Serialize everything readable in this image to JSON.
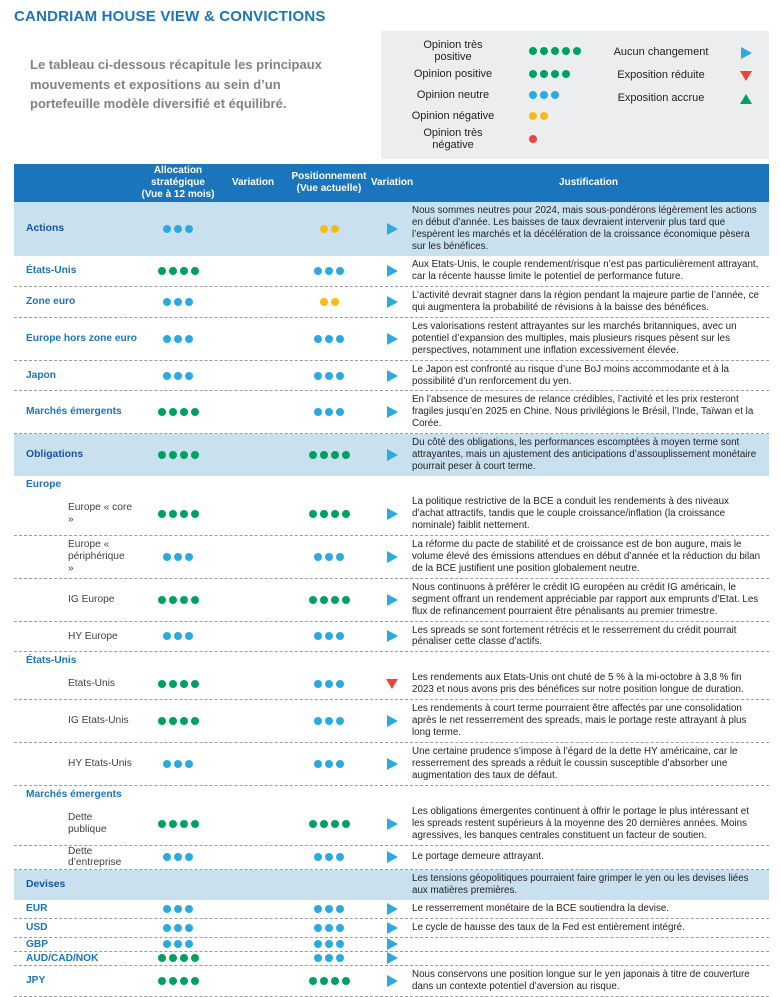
{
  "title": "CANDRIAM HOUSE VIEW & CONVICTIONS",
  "intro": "Le tableau ci-dessous récapitule les principaux mouvements et expositions au sein d’un portefeuille modèle diversifié et équilibré.",
  "colors": {
    "green": "#00A160",
    "blue": "#29ABE2",
    "yellow": "#FDB913",
    "red": "#E9453C",
    "brand_blue": "#1B75BC",
    "navy": "#17549F",
    "highlight": "#C9E1EE",
    "legend_bg": "#ECEDEE"
  },
  "legend": {
    "opinions": [
      {
        "label": "Opinion très\npositive",
        "dots": {
          "count": 5,
          "color": "green"
        }
      },
      {
        "label": "Opinion positive",
        "dots": {
          "count": 4,
          "color": "green"
        }
      },
      {
        "label": "Opinion neutre",
        "dots": {
          "count": 3,
          "color": "blue"
        }
      },
      {
        "label": "Opinion négative",
        "dots": {
          "count": 2,
          "color": "yellow"
        }
      },
      {
        "label": "Opinion très\nnégative",
        "dots": {
          "count": 1,
          "color": "red"
        }
      }
    ],
    "variations": [
      {
        "label": "Aucun changement",
        "arrow": {
          "dir": "right",
          "color": "blue"
        }
      },
      {
        "label": "Exposition réduite",
        "arrow": {
          "dir": "down",
          "color": "red"
        }
      },
      {
        "label": "Exposition accrue",
        "arrow": {
          "dir": "up",
          "color": "green"
        }
      }
    ]
  },
  "table": {
    "headers": {
      "label": "",
      "allocation": "Allocation\nstratégique\n(Vue à 12 mois)",
      "variation1": "Variation",
      "positioning": "Positionnement\n(Vue actuelle)",
      "variation2": "Variation",
      "justification": "Justification"
    },
    "rows": [
      {
        "label": "Actions",
        "type": "highlight",
        "alloc": {
          "count": 3,
          "color": "blue"
        },
        "pos": {
          "count": 2,
          "color": "yellow"
        },
        "var2": {
          "dir": "right",
          "color": "blue"
        },
        "just": "Nous sommes neutres pour 2024, mais sous-pondérons légèrement les actions en début d’année. Les baisses de taux devraient intervenir plus tard que l’espèrent les marchés et la décélération de la croissance économique pèsera sur les bénéfices."
      },
      {
        "label": "États-Unis",
        "type": "main",
        "alloc": {
          "count": 4,
          "color": "green"
        },
        "pos": {
          "count": 3,
          "color": "blue"
        },
        "var2": {
          "dir": "right",
          "color": "blue"
        },
        "just": "Aux Etats-Unis, le couple rendement/risque n’est pas particulièrement attrayant, car la récente hausse limite le potentiel de performance future."
      },
      {
        "label": "Zone euro",
        "type": "main",
        "alloc": {
          "count": 3,
          "color": "blue"
        },
        "pos": {
          "count": 2,
          "color": "yellow"
        },
        "var2": {
          "dir": "right",
          "color": "blue"
        },
        "just": "L’activité devrait stagner dans la région pendant la majeure partie de l’année, ce qui augmentera la probabilité de révisions à la baisse des bénéfices."
      },
      {
        "label": "Europe hors zone euro",
        "type": "main",
        "alloc": {
          "count": 3,
          "color": "blue"
        },
        "pos": {
          "count": 3,
          "color": "blue"
        },
        "var2": {
          "dir": "right",
          "color": "blue"
        },
        "just": "Les valorisations restent attrayantes sur les marchés britanniques, avec un potentiel d’expansion des multiples, mais plusieurs risques pèsent sur les perspectives, notamment une inflation excessivement élevée."
      },
      {
        "label": "Japon",
        "type": "main",
        "alloc": {
          "count": 3,
          "color": "blue"
        },
        "pos": {
          "count": 3,
          "color": "blue"
        },
        "var2": {
          "dir": "right",
          "color": "blue"
        },
        "just": "Le Japon est confronté au risque d’une BoJ moins accommodante et à la possibilité d’un renforcement du yen."
      },
      {
        "label": "Marchés émergents",
        "type": "main",
        "alloc": {
          "count": 4,
          "color": "green"
        },
        "pos": {
          "count": 3,
          "color": "blue"
        },
        "var2": {
          "dir": "right",
          "color": "blue"
        },
        "just": "En l’absence de mesures de relance crédibles, l’activité et les prix resteront fragiles jusqu’en 2025 en Chine. Nous privilégions le Brésil, l’Inde, Taïwan et la Corée."
      },
      {
        "label": "Obligations",
        "type": "highlight",
        "alloc": {
          "count": 4,
          "color": "green"
        },
        "pos": {
          "count": 4,
          "color": "green"
        },
        "var2": {
          "dir": "right",
          "color": "blue"
        },
        "just": "Du côté des obligations, les performances escomptées à moyen terme sont attrayantes, mais un ajustement des anticipations d’assouplissement monétaire pourrait peser à court terme."
      },
      {
        "label": "Europe",
        "type": "section",
        "alloc": null,
        "pos": null,
        "var2": null,
        "just": ""
      },
      {
        "label": "Europe « core »",
        "type": "sub",
        "alloc": {
          "count": 4,
          "color": "green"
        },
        "pos": {
          "count": 4,
          "color": "green"
        },
        "var2": {
          "dir": "right",
          "color": "blue"
        },
        "just": "La politique restrictive de la BCE a conduit les rendements à des niveaux d’achat attractifs, tandis que le couple croissance/inflation (la croissance nominale) faiblit nettement."
      },
      {
        "label": "Europe « périphérique »",
        "type": "sub",
        "alloc": {
          "count": 3,
          "color": "blue"
        },
        "pos": {
          "count": 3,
          "color": "blue"
        },
        "var2": {
          "dir": "right",
          "color": "blue"
        },
        "just": "La réforme du pacte de stabilité et de croissance est de bon augure, mais le volume élevé des émissions attendues en début d’année et la réduction du bilan de la BCE justifient une position globalement neutre."
      },
      {
        "label": "IG Europe",
        "type": "sub",
        "alloc": {
          "count": 4,
          "color": "green"
        },
        "pos": {
          "count": 4,
          "color": "green"
        },
        "var2": {
          "dir": "right",
          "color": "blue"
        },
        "just": "Nous continuons à préférer le crédit IG européen au crédit IG américain, le segment offrant un rendement appréciable par rapport aux emprunts d’Etat. Les flux de refinancement pourraient être pénalisants au premier trimestre."
      },
      {
        "label": "HY Europe",
        "type": "sub",
        "alloc": {
          "count": 3,
          "color": "blue"
        },
        "pos": {
          "count": 3,
          "color": "blue"
        },
        "var2": {
          "dir": "right",
          "color": "blue"
        },
        "just": "Les spreads se sont fortement rétrécis et le resserrement du crédit pourrait pénaliser cette classe d’actifs."
      },
      {
        "label": "États-Unis",
        "type": "section",
        "alloc": null,
        "pos": null,
        "var2": null,
        "just": ""
      },
      {
        "label": "Etats-Unis",
        "type": "sub",
        "alloc": {
          "count": 4,
          "color": "green"
        },
        "pos": {
          "count": 3,
          "color": "blue"
        },
        "var2": {
          "dir": "down",
          "color": "red"
        },
        "just": "Les rendements aux Etats-Unis ont chuté de 5 % à la mi-octobre à 3,8 % fin 2023 et nous avons pris des bénéfices sur notre position longue de duration."
      },
      {
        "label": "IG Etats-Unis",
        "type": "sub",
        "alloc": {
          "count": 4,
          "color": "green"
        },
        "pos": {
          "count": 3,
          "color": "blue"
        },
        "var2": {
          "dir": "right",
          "color": "blue"
        },
        "just": "Les rendements à court terme pourraient être affectés par une consolidation après le net resserrement des spreads, mais le portage reste attrayant à plus long terme."
      },
      {
        "label": "HY Etats-Unis",
        "type": "sub",
        "alloc": {
          "count": 3,
          "color": "blue"
        },
        "pos": {
          "count": 3,
          "color": "blue"
        },
        "var2": {
          "dir": "right",
          "color": "blue"
        },
        "just": "Une certaine prudence s’impose à l’égard de la dette HY américaine, car le resserrement des spreads a réduit le coussin susceptible d’absorber une augmentation des taux de défaut."
      },
      {
        "label": "Marchés émergents",
        "type": "section",
        "alloc": null,
        "pos": null,
        "var2": null,
        "just": ""
      },
      {
        "label": "Dette publique",
        "type": "sub",
        "alloc": {
          "count": 4,
          "color": "green"
        },
        "pos": {
          "count": 4,
          "color": "green"
        },
        "var2": {
          "dir": "right",
          "color": "blue"
        },
        "just": "Les obligations émergentes continuent à offrir le portage le plus intéressant et les spreads restent supérieurs à la moyenne des 20 dernières années. Moins agressives, les banques centrales constituent un facteur de soutien."
      },
      {
        "label": "Dette d’entreprise",
        "type": "sub",
        "alloc": {
          "count": 3,
          "color": "blue"
        },
        "pos": {
          "count": 3,
          "color": "blue"
        },
        "var2": {
          "dir": "right",
          "color": "blue"
        },
        "just": "Le portage demeure attrayant."
      },
      {
        "label": "Devises",
        "type": "highlight",
        "alloc": null,
        "pos": null,
        "var2": null,
        "just": "Les tensions géopolitiques pourraient faire grimper le yen ou les devises liées aux matières premières."
      },
      {
        "label": "EUR",
        "type": "main",
        "alloc": {
          "count": 3,
          "color": "blue"
        },
        "pos": {
          "count": 3,
          "color": "blue"
        },
        "var2": {
          "dir": "right",
          "color": "blue"
        },
        "just": "Le resserrement monétaire de la BCE soutiendra la devise."
      },
      {
        "label": "USD",
        "type": "main",
        "alloc": {
          "count": 3,
          "color": "blue"
        },
        "pos": {
          "count": 3,
          "color": "blue"
        },
        "var2": {
          "dir": "right",
          "color": "blue"
        },
        "just": "Le cycle de hausse des taux de la Fed est entièrement intégré."
      },
      {
        "label": "GBP",
        "type": "main",
        "alloc": {
          "count": 3,
          "color": "blue"
        },
        "pos": {
          "count": 3,
          "color": "blue"
        },
        "var2": {
          "dir": "right",
          "color": "blue"
        },
        "just": ""
      },
      {
        "label": "AUD/CAD/NOK",
        "type": "main",
        "alloc": {
          "count": 4,
          "color": "green"
        },
        "pos": {
          "count": 3,
          "color": "blue"
        },
        "var2": {
          "dir": "right",
          "color": "blue"
        },
        "just": ""
      },
      {
        "label": "JPY",
        "type": "main",
        "alloc": {
          "count": 4,
          "color": "green"
        },
        "pos": {
          "count": 4,
          "color": "green"
        },
        "var2": {
          "dir": "right",
          "color": "blue"
        },
        "just": "Nous conservons une position longue sur le yen japonais à titre de couverture dans un contexte potentiel d’aversion au risque."
      }
    ]
  }
}
